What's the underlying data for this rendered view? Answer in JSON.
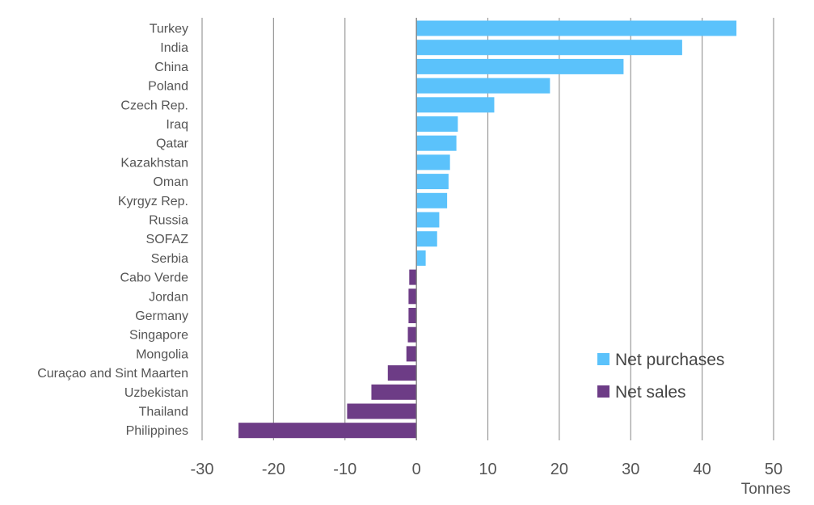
{
  "chart_data": {
    "type": "bar",
    "orientation": "horizontal",
    "title": "",
    "xlabel": "Tonnes",
    "ylabel": "",
    "xlim": [
      -30,
      50
    ],
    "xticks": [
      -30,
      -20,
      -10,
      0,
      10,
      20,
      30,
      40,
      50
    ],
    "grid": true,
    "legend_position": "bottom-right",
    "categories": [
      "Turkey",
      "India",
      "China",
      "Poland",
      "Czech Rep.",
      "Iraq",
      "Qatar",
      "Kazakhstan",
      "Oman",
      "Kyrgyz Rep.",
      "Russia",
      "SOFAZ",
      "Serbia",
      "Cabo Verde",
      "Jordan",
      "Germany",
      "Singapore",
      "Mongolia",
      "Curaçao and Sint Maarten",
      "Uzbekistan",
      "Thailand",
      "Philippines"
    ],
    "values": [
      44.8,
      37.2,
      29.0,
      18.7,
      10.9,
      5.8,
      5.6,
      4.7,
      4.5,
      4.3,
      3.2,
      2.9,
      1.3,
      -1.0,
      -1.1,
      -1.1,
      -1.2,
      -1.4,
      -4.0,
      -6.3,
      -9.7,
      -24.9
    ],
    "series": [
      {
        "name": "Net purchases",
        "color": "#5bc2fb"
      },
      {
        "name": "Net sales",
        "color": "#6d3c86"
      }
    ]
  }
}
